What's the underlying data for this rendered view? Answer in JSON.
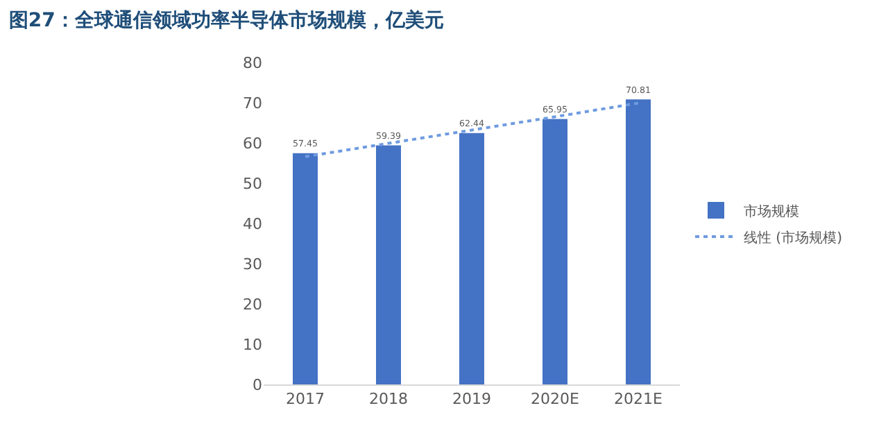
{
  "chart_data": {
    "type": "bar",
    "title": "图27：全球通信领域功率半导体市场规模，亿美元",
    "categories": [
      "2017",
      "2018",
      "2019",
      "2020E",
      "2021E"
    ],
    "series": [
      {
        "name": "市场规模",
        "color": "#4472c4",
        "values": [
          57.45,
          59.39,
          62.44,
          65.95,
          70.81
        ],
        "value_labels": [
          "57.45",
          "59.39",
          "62.44",
          "65.95",
          "70.81"
        ]
      },
      {
        "name": "线性 (市场规模)",
        "type": "line",
        "color": "#6f9be0",
        "line_style": "dotted",
        "values": [
          56.6,
          59.9,
          63.2,
          66.5,
          69.9
        ]
      }
    ],
    "ylim": [
      0,
      80
    ],
    "yticks": [
      0,
      10,
      20,
      30,
      40,
      50,
      60,
      70,
      80
    ],
    "grid": false,
    "legend": "right"
  }
}
